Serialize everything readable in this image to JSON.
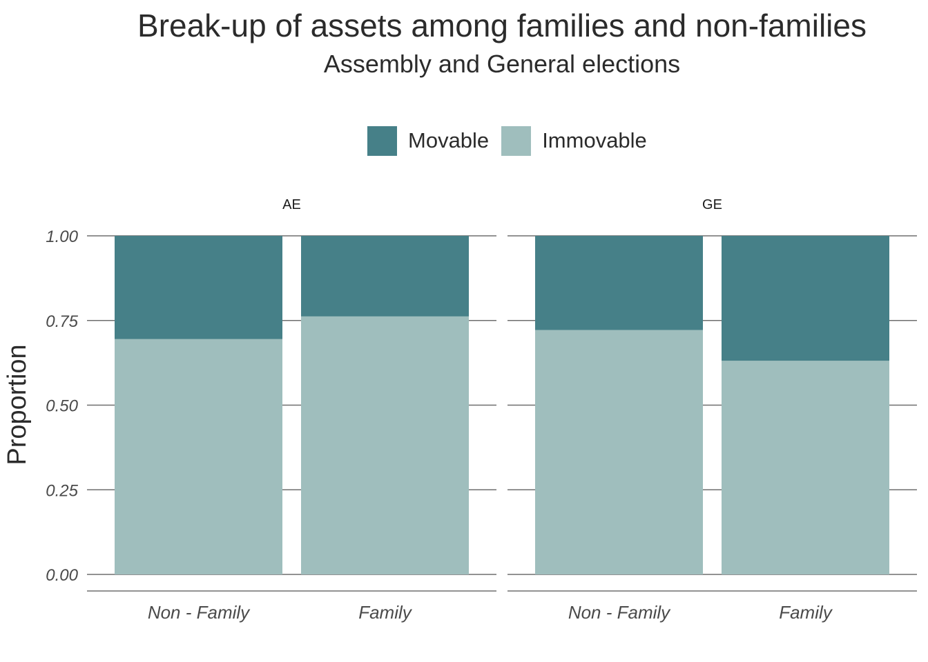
{
  "chart_data": {
    "type": "bar",
    "stacked": true,
    "title": "Break-up of assets among families and non-families",
    "subtitle": "Assembly and General elections",
    "ylabel": "Proportion",
    "ylim": [
      0,
      1
    ],
    "yticks": [
      "0.00",
      "0.25",
      "0.50",
      "0.75",
      "1.00"
    ],
    "legend_position": "top",
    "legend": [
      {
        "name": "Movable",
        "color": "#468088"
      },
      {
        "name": "Immovable",
        "color": "#9fbebd"
      }
    ],
    "categories": [
      "Non - Family",
      "Family"
    ],
    "facets": [
      {
        "label": "AE",
        "series": [
          {
            "name": "Immovable",
            "values": [
              0.695,
              0.762
            ]
          },
          {
            "name": "Movable",
            "values": [
              0.305,
              0.238
            ]
          }
        ]
      },
      {
        "label": "GE",
        "series": [
          {
            "name": "Immovable",
            "values": [
              0.722,
              0.631
            ]
          },
          {
            "name": "Movable",
            "values": [
              0.278,
              0.369
            ]
          }
        ]
      }
    ],
    "grid": true,
    "colors": {
      "movable": "#468088",
      "immovable": "#9fbebd",
      "grid": "#6e6e6e"
    }
  }
}
